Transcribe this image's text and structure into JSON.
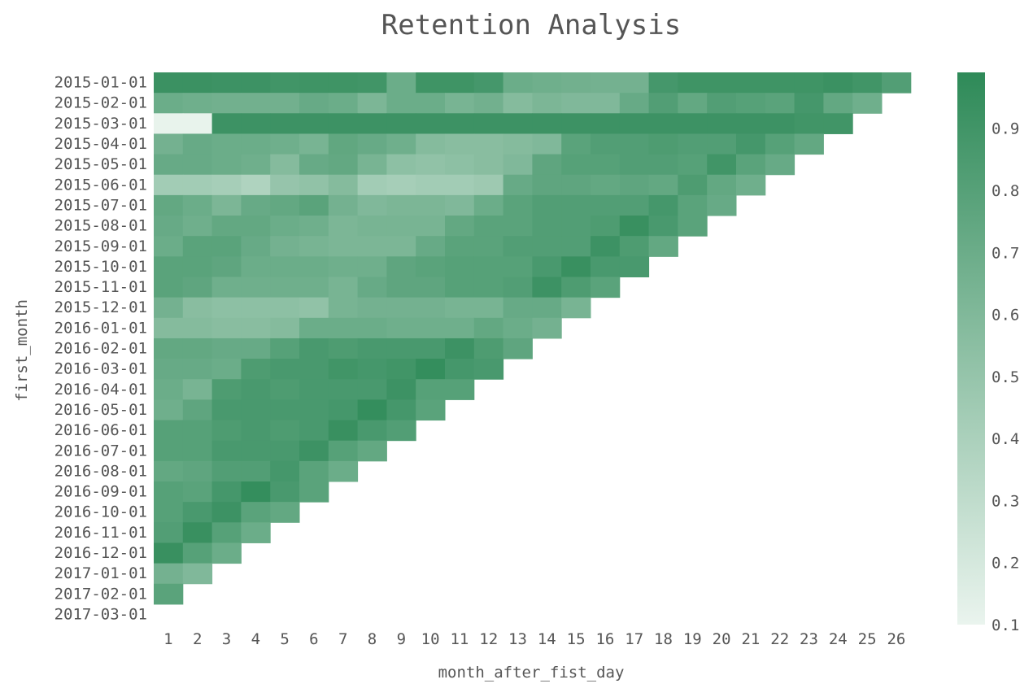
{
  "chart_data": {
    "type": "heatmap",
    "title": "Retention Analysis",
    "xlabel": "month_after_fist_day",
    "ylabel": "first_month",
    "x": [
      1,
      2,
      3,
      4,
      5,
      6,
      7,
      8,
      9,
      10,
      11,
      12,
      13,
      14,
      15,
      16,
      17,
      18,
      19,
      20,
      21,
      22,
      23,
      24,
      25,
      26
    ],
    "y": [
      "2015-01-01",
      "2015-02-01",
      "2015-03-01",
      "2015-04-01",
      "2015-05-01",
      "2015-06-01",
      "2015-07-01",
      "2015-08-01",
      "2015-09-01",
      "2015-10-01",
      "2015-11-01",
      "2015-12-01",
      "2016-01-01",
      "2016-02-01",
      "2016-03-01",
      "2016-04-01",
      "2016-05-01",
      "2016-06-01",
      "2016-07-01",
      "2016-08-01",
      "2016-09-01",
      "2016-10-01",
      "2016-11-01",
      "2016-12-01",
      "2017-01-01",
      "2017-02-01",
      "2017-03-01"
    ],
    "values": [
      [
        0.93,
        0.93,
        0.92,
        0.92,
        0.9,
        0.91,
        0.91,
        0.9,
        0.7,
        0.91,
        0.91,
        0.88,
        0.7,
        0.68,
        0.67,
        0.66,
        0.66,
        0.88,
        0.91,
        0.91,
        0.91,
        0.91,
        0.91,
        0.93,
        0.9,
        0.82
      ],
      [
        0.7,
        0.68,
        0.67,
        0.67,
        0.67,
        0.72,
        0.7,
        0.62,
        0.7,
        0.7,
        0.64,
        0.67,
        0.58,
        0.62,
        0.6,
        0.6,
        0.72,
        0.82,
        0.74,
        0.82,
        0.8,
        0.78,
        0.88,
        0.74,
        0.68
      ],
      [
        0.11,
        0.11,
        0.92,
        0.92,
        0.92,
        0.92,
        0.92,
        0.92,
        0.92,
        0.92,
        0.92,
        0.92,
        0.92,
        0.92,
        0.92,
        0.92,
        0.92,
        0.92,
        0.92,
        0.92,
        0.92,
        0.92,
        0.9,
        0.9
      ],
      [
        0.66,
        0.72,
        0.7,
        0.7,
        0.68,
        0.64,
        0.75,
        0.72,
        0.68,
        0.58,
        0.56,
        0.56,
        0.58,
        0.6,
        0.78,
        0.82,
        0.82,
        0.84,
        0.82,
        0.82,
        0.88,
        0.8,
        0.74
      ],
      [
        0.72,
        0.72,
        0.7,
        0.68,
        0.58,
        0.72,
        0.74,
        0.64,
        0.54,
        0.52,
        0.54,
        0.56,
        0.6,
        0.76,
        0.8,
        0.8,
        0.82,
        0.82,
        0.8,
        0.9,
        0.78,
        0.72
      ],
      [
        0.44,
        0.44,
        0.42,
        0.38,
        0.5,
        0.52,
        0.58,
        0.44,
        0.42,
        0.44,
        0.44,
        0.46,
        0.72,
        0.76,
        0.76,
        0.74,
        0.76,
        0.74,
        0.84,
        0.74,
        0.68
      ],
      [
        0.74,
        0.7,
        0.62,
        0.72,
        0.74,
        0.78,
        0.66,
        0.6,
        0.62,
        0.62,
        0.6,
        0.7,
        0.78,
        0.82,
        0.82,
        0.82,
        0.82,
        0.88,
        0.78,
        0.72
      ],
      [
        0.72,
        0.68,
        0.74,
        0.74,
        0.7,
        0.68,
        0.62,
        0.64,
        0.64,
        0.64,
        0.74,
        0.78,
        0.78,
        0.82,
        0.82,
        0.84,
        0.94,
        0.86,
        0.78
      ],
      [
        0.7,
        0.78,
        0.78,
        0.72,
        0.66,
        0.64,
        0.62,
        0.62,
        0.62,
        0.72,
        0.78,
        0.78,
        0.82,
        0.82,
        0.82,
        0.92,
        0.84,
        0.74
      ],
      [
        0.78,
        0.78,
        0.76,
        0.7,
        0.7,
        0.7,
        0.68,
        0.68,
        0.76,
        0.78,
        0.8,
        0.8,
        0.8,
        0.86,
        0.94,
        0.86,
        0.86
      ],
      [
        0.78,
        0.76,
        0.68,
        0.68,
        0.68,
        0.68,
        0.64,
        0.72,
        0.76,
        0.76,
        0.8,
        0.8,
        0.82,
        0.92,
        0.84,
        0.78
      ],
      [
        0.66,
        0.56,
        0.54,
        0.54,
        0.54,
        0.52,
        0.64,
        0.66,
        0.66,
        0.66,
        0.64,
        0.64,
        0.72,
        0.72,
        0.64
      ],
      [
        0.58,
        0.58,
        0.56,
        0.56,
        0.58,
        0.7,
        0.7,
        0.7,
        0.68,
        0.68,
        0.68,
        0.74,
        0.7,
        0.66
      ],
      [
        0.74,
        0.74,
        0.72,
        0.72,
        0.8,
        0.86,
        0.84,
        0.86,
        0.86,
        0.86,
        0.92,
        0.84,
        0.76
      ],
      [
        0.72,
        0.72,
        0.7,
        0.84,
        0.86,
        0.86,
        0.9,
        0.88,
        0.9,
        0.96,
        0.88,
        0.86
      ],
      [
        0.7,
        0.64,
        0.84,
        0.86,
        0.84,
        0.86,
        0.86,
        0.86,
        0.92,
        0.8,
        0.8
      ],
      [
        0.68,
        0.76,
        0.86,
        0.86,
        0.86,
        0.86,
        0.88,
        0.96,
        0.88,
        0.78
      ],
      [
        0.8,
        0.8,
        0.84,
        0.86,
        0.84,
        0.86,
        0.94,
        0.86,
        0.82
      ],
      [
        0.8,
        0.8,
        0.86,
        0.86,
        0.86,
        0.92,
        0.8,
        0.74
      ],
      [
        0.74,
        0.76,
        0.82,
        0.82,
        0.88,
        0.78,
        0.7
      ],
      [
        0.8,
        0.78,
        0.88,
        0.96,
        0.86,
        0.78
      ],
      [
        0.8,
        0.86,
        0.92,
        0.78,
        0.74
      ],
      [
        0.82,
        0.94,
        0.8,
        0.7
      ],
      [
        0.94,
        0.8,
        0.7
      ],
      [
        0.66,
        0.6
      ],
      [
        0.78
      ],
      []
    ],
    "colorbar": {
      "min": 0.1,
      "max": 0.99,
      "ticks": [
        0.1,
        0.2,
        0.3,
        0.4,
        0.5,
        0.6,
        0.7,
        0.8,
        0.9
      ],
      "tick_labels": [
        "0.1",
        "0.2",
        "0.3",
        "0.4",
        "0.5",
        "0.6",
        "0.7",
        "0.8",
        "0.9"
      ],
      "color_low": "#eaf4ee",
      "color_high": "#2e8a58"
    },
    "grid": false
  }
}
